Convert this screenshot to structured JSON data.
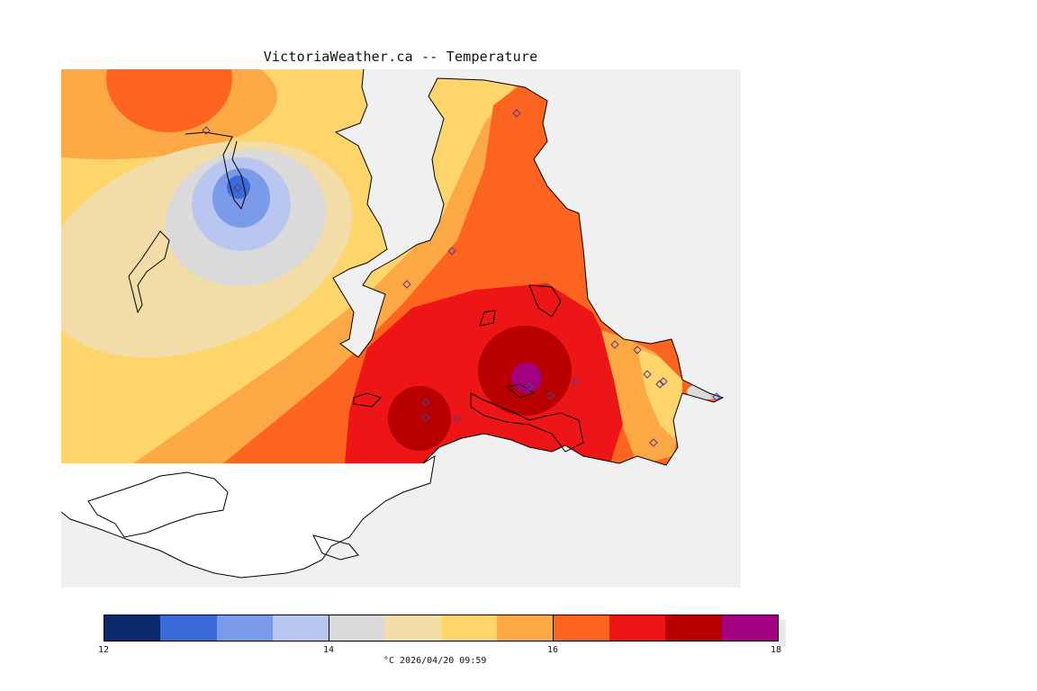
{
  "title": "VictoriaWeather.ca -- Temperature",
  "legend": {
    "colors": [
      "#0b2a6b",
      "#3b6bd9",
      "#7a9bea",
      "#b9c6ef",
      "#dadada",
      "#f2dca8",
      "#fdd56b",
      "#fca945",
      "#fc6420",
      "#ed1515",
      "#b80000",
      "#a30081"
    ],
    "ticks": [
      "12",
      "14",
      "16",
      "18"
    ],
    "caption": "°C  2026/04/20 09:59"
  },
  "stations": 18
}
